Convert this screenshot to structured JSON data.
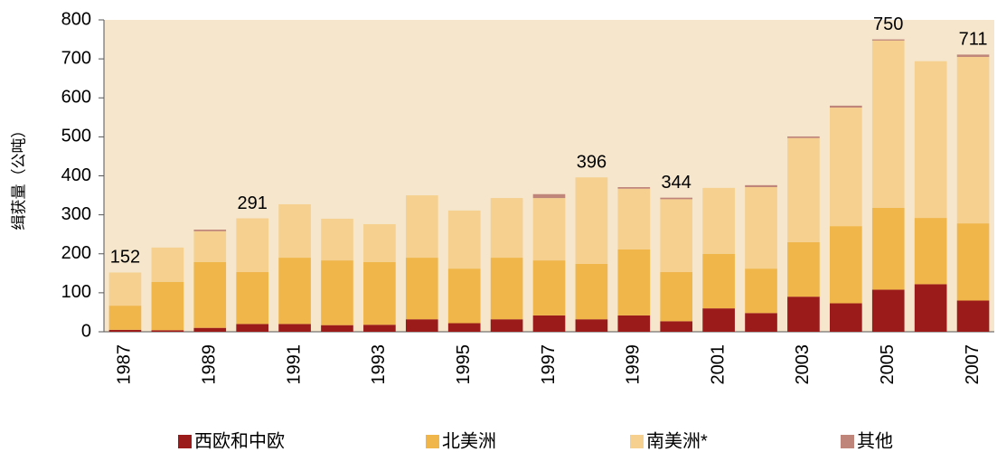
{
  "chart_data": {
    "type": "bar",
    "stacked": true,
    "y_label": "缉获量（公吨）",
    "categories": [
      "1987",
      null,
      "1989",
      null,
      "1991",
      null,
      "1993",
      null,
      "1995",
      null,
      "1997",
      null,
      "1999",
      null,
      "2001",
      null,
      "2003",
      null,
      "2005",
      null,
      "2007"
    ],
    "series": [
      {
        "name": "西欧和中欧",
        "color": "#9b1b1b",
        "values": [
          5,
          4,
          10,
          20,
          20,
          17,
          18,
          32,
          22,
          32,
          42,
          32,
          42,
          27,
          60,
          48,
          90,
          73,
          108,
          122,
          80
        ]
      },
      {
        "name": "北美洲",
        "color": "#f0b64a",
        "values": [
          62,
          124,
          169,
          133,
          170,
          166,
          161,
          158,
          140,
          158,
          141,
          142,
          169,
          126,
          140,
          114,
          140,
          198,
          210,
          170,
          198
        ]
      },
      {
        "name": "南美洲*",
        "color": "#f5d08f",
        "values": [
          85,
          88,
          79,
          138,
          137,
          107,
          97,
          160,
          149,
          153,
          160,
          222,
          156,
          187,
          169,
          209,
          267,
          304,
          429,
          402,
          427
        ]
      },
      {
        "name": "其他",
        "color": "#c0857a",
        "values": [
          0,
          0,
          4,
          0,
          0,
          0,
          0,
          0,
          0,
          0,
          10,
          0,
          4,
          4,
          0,
          5,
          4,
          5,
          3,
          0,
          6
        ]
      }
    ],
    "total_labels": [
      "152",
      null,
      null,
      "291",
      null,
      null,
      null,
      null,
      null,
      null,
      null,
      "396",
      null,
      "344",
      null,
      null,
      null,
      null,
      "750",
      null,
      "711"
    ],
    "ylim": [
      0,
      800
    ],
    "yticks": [
      0,
      100,
      200,
      300,
      400,
      500,
      600,
      700,
      800
    ],
    "plot_background": "#f5e6cc"
  }
}
